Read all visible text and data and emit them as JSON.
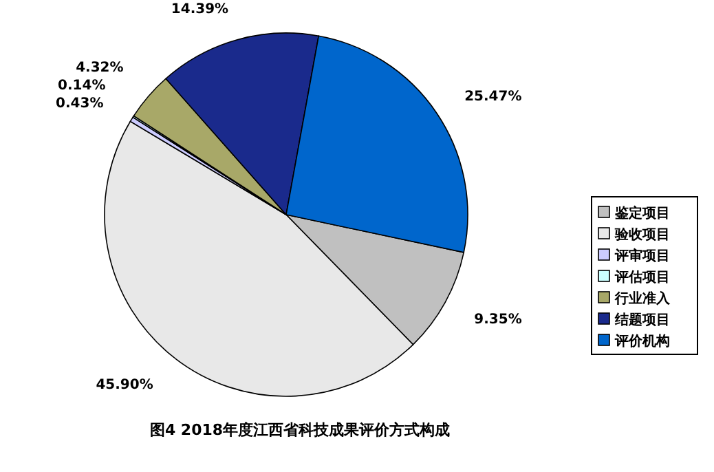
{
  "chart_data": {
    "type": "pie",
    "title": "图4  2018年度江西省科技成果评价方式构成",
    "categories": [
      "鉴定项目",
      "验收项目",
      "评审项目",
      "评估项目",
      "行业准入",
      "结题项目",
      "评价机构"
    ],
    "values": [
      9.35,
      45.9,
      0.43,
      0.14,
      4.32,
      14.39,
      25.47
    ],
    "value_labels": [
      "9.35%",
      "45.90%",
      "0.43%",
      "0.14%",
      "4.32%",
      "14.39%",
      "25.47%"
    ],
    "colors": [
      "#c0c0c0",
      "#e8e8e8",
      "#ccccff",
      "#ccffff",
      "#a8a868",
      "#1a2a8c",
      "#0066cc"
    ],
    "legend": "right"
  }
}
